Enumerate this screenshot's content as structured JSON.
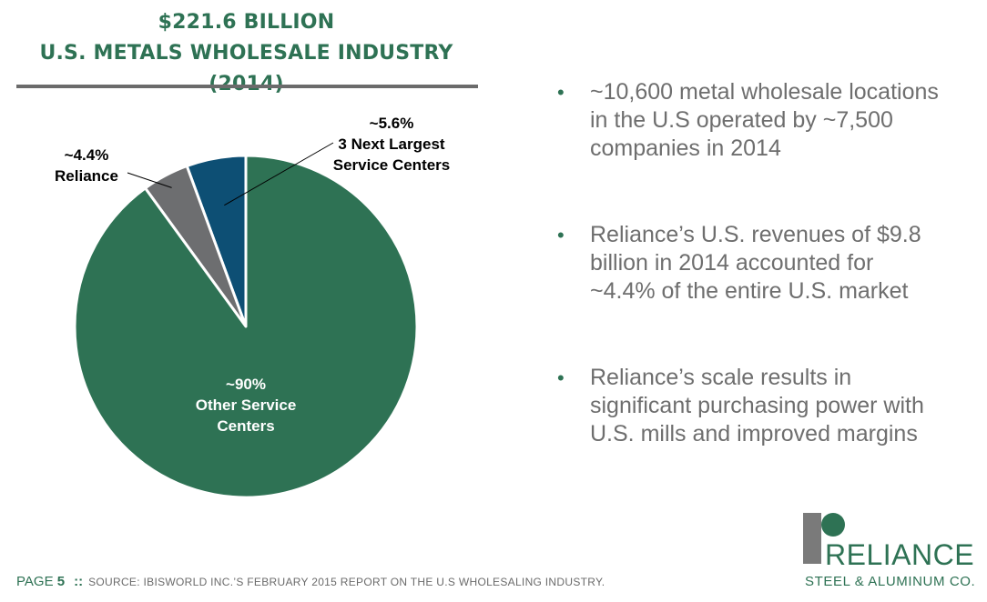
{
  "header": {
    "title_line1": "$221.6 BILLION",
    "title_line2": "U.S. METALS WHOLESALE INDUSTRY (2014)"
  },
  "chart_data": {
    "type": "pie",
    "title": "$221.6 BILLION U.S. METALS WHOLESALE INDUSTRY (2014)",
    "slices": [
      {
        "value": 5.6,
        "pct_label": "~5.6%",
        "name_lines": [
          "3 Next Largest",
          "Service Centers"
        ],
        "color": "#0d4f74"
      },
      {
        "value": 4.4,
        "pct_label": "~4.4%",
        "name_lines": [
          "Reliance"
        ],
        "color": "#6d6e70"
      },
      {
        "value": 90,
        "pct_label": "~90%",
        "name_lines": [
          "Other Service",
          "Centers"
        ],
        "color": "#2e7254"
      }
    ]
  },
  "bullets": [
    {
      "lines": [
        "~10,600 metal wholesale locations",
        "in the U.S operated by ~7,500",
        "companies in 2014"
      ]
    },
    {
      "lines": [
        "Reliance’s U.S. revenues of $9.8",
        "billion in 2014 accounted for",
        "~4.4% of the entire U.S. market"
      ]
    },
    {
      "lines": [
        "Reliance’s scale results in",
        "significant purchasing power with",
        "U.S. mills and improved margins"
      ]
    }
  ],
  "footer": {
    "page_label": "PAGE",
    "page_number": "5",
    "separator": "::",
    "source": "SOURCE:  IBISWORLD INC.’S FEBRUARY 2015 REPORT ON THE U.S WHOLESALING INDUSTRY."
  },
  "logo": {
    "name": "RELIANCE",
    "subtitle": "STEEL & ALUMINUM CO."
  },
  "colors": {
    "brand_green": "#2e7254",
    "rule_gray": "#6b6b6b",
    "text_gray": "#6e6e6e"
  }
}
